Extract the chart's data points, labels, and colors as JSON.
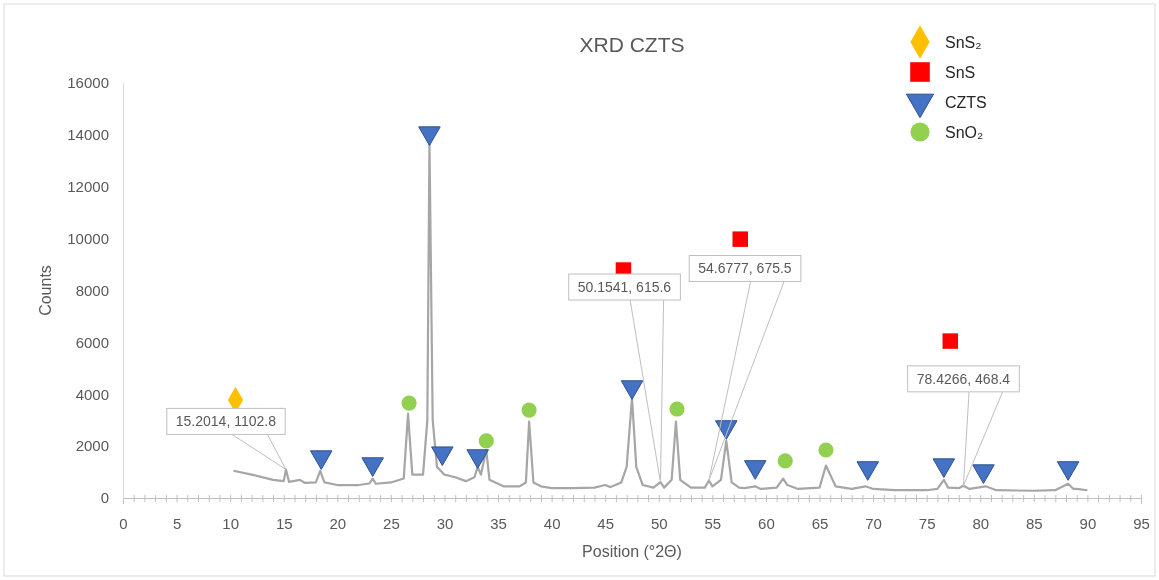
{
  "chart_data": {
    "type": "line",
    "title": "XRD CZTS",
    "xlabel": "Position (°2Θ)",
    "ylabel": "Counts",
    "xlim": [
      0,
      95
    ],
    "ylim": [
      0,
      16000
    ],
    "xticks": [
      0,
      {
        "value": 1,
        "label": null
      },
      {
        "value": 2,
        "label": null
      },
      {
        "value": 3,
        "label": null
      },
      {
        "value": 4,
        "label": null
      },
      5,
      {
        "value": 6,
        "label": null
      },
      {
        "value": 7,
        "label": null
      },
      {
        "value": 8,
        "label": null
      },
      {
        "value": 9,
        "label": null
      },
      10,
      {
        "value": 11,
        "label": null
      },
      {
        "value": 12,
        "label": null
      },
      {
        "value": 13,
        "label": null
      },
      {
        "value": 14,
        "label": null
      },
      15,
      {
        "value": 16,
        "label": null
      },
      {
        "value": 17,
        "label": null
      },
      {
        "value": 18,
        "label": null
      },
      {
        "value": 19,
        "label": null
      },
      20,
      {
        "value": 21,
        "label": null
      },
      {
        "value": 22,
        "label": null
      },
      {
        "value": 23,
        "label": null
      },
      {
        "value": 24,
        "label": null
      },
      25,
      {
        "value": 26,
        "label": null
      },
      {
        "value": 27,
        "label": null
      },
      {
        "value": 28,
        "label": null
      },
      {
        "value": 29,
        "label": null
      },
      30,
      {
        "value": 31,
        "label": null
      },
      {
        "value": 32,
        "label": null
      },
      {
        "value": 33,
        "label": null
      },
      {
        "value": 34,
        "label": null
      },
      35,
      {
        "value": 36,
        "label": null
      },
      {
        "value": 37,
        "label": null
      },
      {
        "value": 38,
        "label": null
      },
      {
        "value": 39,
        "label": null
      },
      40,
      {
        "value": 41,
        "label": null
      },
      {
        "value": 42,
        "label": null
      },
      {
        "value": 43,
        "label": null
      },
      {
        "value": 44,
        "label": null
      },
      45,
      {
        "value": 46,
        "label": null
      },
      {
        "value": 47,
        "label": null
      },
      {
        "value": 48,
        "label": null
      },
      {
        "value": 49,
        "label": null
      },
      50,
      {
        "value": 51,
        "label": null
      },
      {
        "value": 52,
        "label": null
      },
      {
        "value": 53,
        "label": null
      },
      {
        "value": 54,
        "label": null
      },
      55,
      {
        "value": 56,
        "label": null
      },
      {
        "value": 57,
        "label": null
      },
      {
        "value": 58,
        "label": null
      },
      {
        "value": 59,
        "label": null
      },
      60,
      {
        "value": 61,
        "label": null
      },
      {
        "value": 62,
        "label": null
      },
      {
        "value": 63,
        "label": null
      },
      {
        "value": 64,
        "label": null
      },
      65,
      {
        "value": 66,
        "label": null
      },
      {
        "value": 67,
        "label": null
      },
      {
        "value": 68,
        "label": null
      },
      {
        "value": 69,
        "label": null
      },
      70,
      {
        "value": 71,
        "label": null
      },
      {
        "value": 72,
        "label": null
      },
      {
        "value": 73,
        "label": null
      },
      {
        "value": 74,
        "label": null
      },
      75,
      {
        "value": 76,
        "label": null
      },
      {
        "value": 77,
        "label": null
      },
      {
        "value": 78,
        "label": null
      },
      {
        "value": 79,
        "label": null
      },
      80,
      {
        "value": 81,
        "label": null
      },
      {
        "value": 82,
        "label": null
      },
      {
        "value": 83,
        "label": null
      },
      {
        "value": 84,
        "label": null
      },
      85,
      {
        "value": 86,
        "label": null
      },
      {
        "value": 87,
        "label": null
      },
      {
        "value": 88,
        "label": null
      },
      {
        "value": 89,
        "label": null
      },
      90,
      {
        "value": 91,
        "label": null
      },
      {
        "value": 92,
        "label": null
      },
      {
        "value": 93,
        "label": null
      },
      {
        "value": 94,
        "label": null
      },
      95
    ],
    "yticks": [
      0,
      2000,
      4000,
      6000,
      8000,
      10000,
      12000,
      14000,
      16000
    ],
    "grid": false,
    "legend": "top right",
    "series": [
      {
        "color": "#a6a6a6",
        "marker": "none",
        "x": [
          10.3,
          12,
          14,
          15,
          15.2014,
          15.5,
          16.5,
          17,
          18,
          18.4,
          18.8,
          20,
          22,
          23,
          23.3,
          23.6,
          25,
          26.2,
          26.6,
          27,
          28,
          28.4,
          28.6,
          28.9,
          29.3,
          30,
          31,
          32,
          32.8,
          33.1,
          33.4,
          33.9,
          34.2,
          35,
          35.5,
          36,
          37,
          37.6,
          37.9,
          38.3,
          39,
          40,
          42,
          44,
          45,
          45.5,
          46.5,
          47,
          47.5,
          47.9,
          48.5,
          49.5,
          50.1541,
          50.5,
          51.2,
          51.6,
          52,
          53,
          54.3,
          54.6777,
          55,
          55.8,
          56.3,
          56.8,
          57.5,
          58,
          59,
          59.5,
          61,
          61.6,
          62,
          63,
          65,
          65.6,
          66,
          66.5,
          68,
          69.3,
          70,
          72,
          75,
          76,
          76.6,
          77,
          78,
          78.4266,
          79,
          80.5,
          81.5,
          85,
          87,
          88.2,
          88.7,
          89,
          90
        ],
        "values": [
          1050,
          900,
          700,
          650,
          1102.8,
          620,
          700,
          580,
          600,
          1050,
          600,
          500,
          500,
          560,
          750,
          550,
          600,
          750,
          3250,
          900,
          900,
          3000,
          13700,
          3000,
          1200,
          900,
          800,
          650,
          800,
          1200,
          900,
          1850,
          700,
          550,
          450,
          450,
          450,
          600,
          2950,
          600,
          450,
          380,
          380,
          400,
          500,
          420,
          600,
          1200,
          3850,
          1200,
          500,
          400,
          615.6,
          400,
          700,
          2950,
          700,
          400,
          400,
          675.5,
          450,
          700,
          2200,
          600,
          400,
          380,
          450,
          350,
          400,
          750,
          500,
          350,
          400,
          1250,
          900,
          450,
          350,
          450,
          350,
          300,
          300,
          350,
          700,
          400,
          380,
          468.4,
          350,
          450,
          300,
          280,
          300,
          550,
          350,
          350,
          300
        ]
      },
      {
        "type": "scatter",
        "name": "SnS₂",
        "color": "#ffc000",
        "marker": "diamond",
        "x": [
          10.5
        ],
        "values": [
          3780
        ]
      },
      {
        "type": "scatter",
        "name": "SnS",
        "color": "#ff0000",
        "marker": "square",
        "x": [
          46.7,
          57.6,
          77.2
        ],
        "values": [
          8790,
          9980,
          6050
        ]
      },
      {
        "type": "scatter",
        "name": "CZTS",
        "color": "#4472c4",
        "marker": "triangle",
        "x": [
          18.5,
          23.3,
          28.6,
          29.8,
          33.1,
          47.5,
          56.3,
          59.0,
          69.5,
          76.6,
          80.3,
          88.2
        ],
        "values": [
          1580,
          1310,
          14070,
          1730,
          1620,
          4280,
          2740,
          1200,
          1160,
          1270,
          1040,
          1160
        ]
      },
      {
        "type": "scatter",
        "name": "SnO₂",
        "color": "#92d050",
        "marker": "circle",
        "x": [
          26.7,
          33.9,
          37.9,
          51.7,
          61.8,
          65.6
        ],
        "values": [
          3660,
          2200,
          3390,
          3430,
          1430,
          1850
        ]
      }
    ],
    "annotations": [
      {
        "text": "15.2014, 1102.8",
        "x": 15.2014,
        "y": 1102.8
      },
      {
        "text": "50.1541, 615.6",
        "x": 50.1541,
        "y": 615.6
      },
      {
        "text": "54.6777, 675.5",
        "x": 54.6777,
        "y": 675.5
      },
      {
        "text": "78.4266, 468.4",
        "x": 78.4266,
        "y": 468.4
      }
    ]
  }
}
